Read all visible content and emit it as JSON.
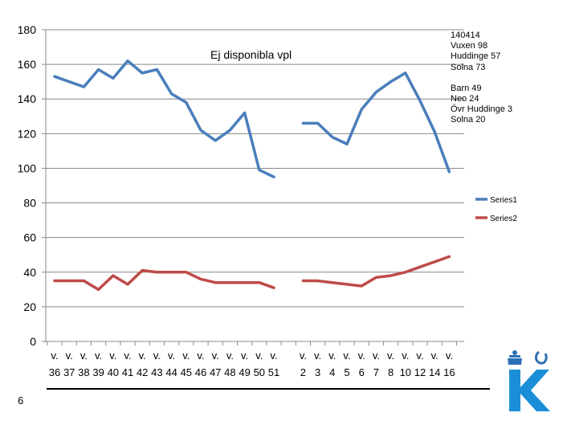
{
  "chart_data": {
    "type": "line",
    "title": "Ej disponibla vpl",
    "ylim": [
      0,
      180
    ],
    "yticks": [
      0,
      20,
      40,
      60,
      80,
      100,
      120,
      140,
      160,
      180
    ],
    "categories": [
      "v. 36",
      "v. 37",
      "v. 38",
      "v. 39",
      "v. 40",
      "v. 41",
      "v. 42",
      "v. 43",
      "v. 44",
      "v. 45",
      "v. 46",
      "v. 47",
      "v. 48",
      "v. 49",
      "v. 50",
      "v. 51",
      "",
      "v. 2",
      "v. 3",
      "v. 4",
      "v. 5",
      "v. 6",
      "v. 7",
      "v. 8",
      "v. 10",
      "v. 12",
      "v. 14",
      "v. 16"
    ],
    "category_tops": [
      "v.",
      "v.",
      "v.",
      "v.",
      "v.",
      "v.",
      "v.",
      "v.",
      "v.",
      "v.",
      "v.",
      "v.",
      "v.",
      "v.",
      "v.",
      "v.",
      "",
      "v.",
      "v.",
      "v.",
      "v.",
      "v.",
      "v.",
      "v.",
      "v.",
      "v.",
      "v.",
      "v."
    ],
    "category_bottoms": [
      "36",
      "37",
      "38",
      "39",
      "40",
      "41",
      "42",
      "43",
      "44",
      "45",
      "46",
      "47",
      "48",
      "49",
      "50",
      "51",
      "",
      "2",
      "3",
      "4",
      "5",
      "6",
      "7",
      "8",
      "10",
      "12",
      "14",
      "16"
    ],
    "series": [
      {
        "name": "Series1",
        "color": "#4A7EBB",
        "values": [
          153,
          150,
          147,
          157,
          152,
          162,
          155,
          157,
          143,
          138,
          122,
          116,
          122,
          132,
          99,
          95,
          null,
          126,
          126,
          118,
          114,
          134,
          144,
          150,
          155,
          139,
          121,
          98
        ]
      },
      {
        "name": "Series2",
        "color": "#BE4B48",
        "values": [
          35,
          35,
          35,
          30,
          38,
          33,
          41,
          40,
          40,
          40,
          36,
          34,
          34,
          34,
          34,
          31,
          null,
          35,
          35,
          34,
          33,
          32,
          37,
          38,
          40,
          43,
          46,
          49
        ]
      }
    ],
    "legend_position": "right",
    "annotation_lines": [
      "140414",
      "Vuxen 98",
      "Huddinge 57",
      "Solna 73",
      "Barn 49",
      "Neo 24",
      "Övr Huddinge 3",
      "Solna 20"
    ]
  },
  "page_number": "6"
}
